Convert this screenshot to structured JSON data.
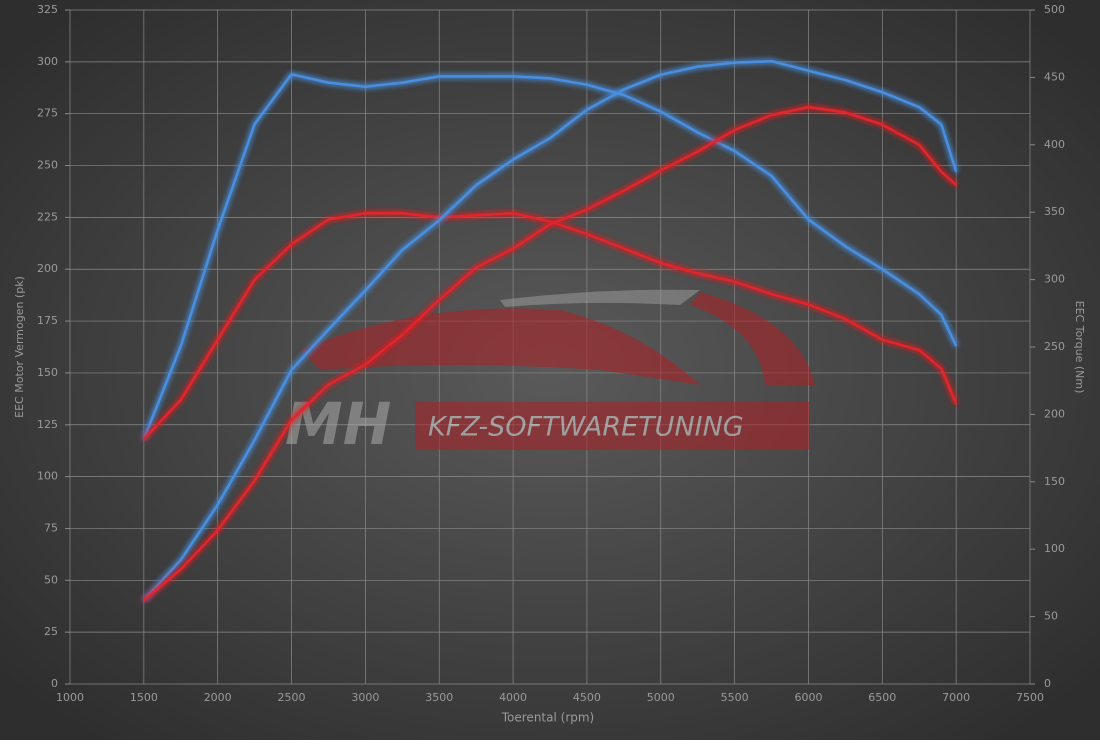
{
  "chart_data": {
    "type": "line",
    "x_label": "Toerental (rpm)",
    "y_label": "EEC Motor Vermogen (pk)",
    "y2_label": "EEC Torque (Nm)",
    "x": [
      1500,
      1750,
      2000,
      2250,
      2500,
      2750,
      3000,
      3250,
      3500,
      3750,
      4000,
      4250,
      4500,
      4750,
      5000,
      5250,
      5500,
      5750,
      6000,
      6250,
      6500,
      6750,
      6900,
      7000
    ],
    "series": [
      {
        "color": "#4a8fe0",
        "values": [
          118,
          163,
          219,
          270,
          294,
          290,
          288,
          290,
          293,
          293,
          293,
          292,
          289,
          284,
          276,
          266,
          257,
          245,
          224,
          211,
          200,
          188,
          178,
          163
        ]
      },
      {
        "color": "#e0262a",
        "values": [
          118,
          137,
          166,
          195,
          212,
          224,
          227,
          227,
          225,
          226,
          227,
          223,
          217,
          210,
          203,
          198,
          194,
          188,
          183,
          176,
          166,
          161,
          152,
          135
        ]
      },
      {
        "color": "#4a8fe0",
        "axis": "y2",
        "values": [
          62,
          92,
          133,
          181,
          233,
          263,
          292,
          322,
          344,
          370,
          389,
          405,
          426,
          441,
          452,
          458,
          461,
          462,
          455,
          448,
          439,
          428,
          415,
          380
        ]
      },
      {
        "color": "#e0262a",
        "axis": "y2",
        "values": [
          62,
          85,
          114,
          151,
          196,
          222,
          237,
          259,
          285,
          309,
          323,
          341,
          352,
          366,
          381,
          395,
          411,
          422,
          428,
          424,
          415,
          400,
          380,
          370
        ]
      }
    ],
    "xlim": [
      1000,
      7500
    ],
    "xticks": [
      1000,
      1500,
      2000,
      2500,
      3000,
      3500,
      4000,
      4500,
      5000,
      5500,
      6000,
      6500,
      7000,
      7500
    ],
    "ylim": [
      0,
      325
    ],
    "yticks": [
      0,
      25,
      50,
      75,
      100,
      125,
      150,
      175,
      200,
      225,
      250,
      275,
      300,
      325
    ],
    "y2lim": [
      0,
      500
    ],
    "y2ticks": [
      0,
      50,
      100,
      150,
      200,
      250,
      300,
      350,
      400,
      450,
      500
    ],
    "grid": true
  },
  "watermark": {
    "logo": "MH",
    "text": "KFZ-SOFTWARETUNING"
  }
}
